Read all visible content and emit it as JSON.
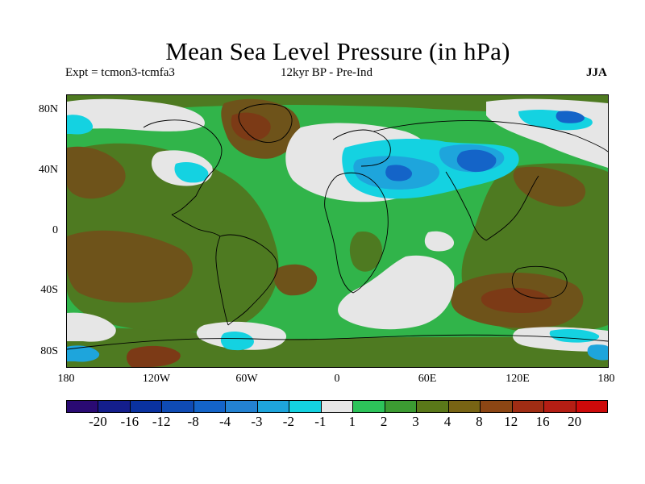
{
  "title": "Mean Sea Level Pressure (in hPa)",
  "experiment": "Expt = tcmon3-tcmfa3",
  "period": "12kyr BP - Pre-Ind",
  "season": "JJA",
  "lat_ticks": [
    "80N",
    "40N",
    "0",
    "40S",
    "80S"
  ],
  "lon_ticks": [
    "180",
    "120W",
    "60W",
    "0",
    "60E",
    "120E",
    "180"
  ],
  "colorbar": {
    "colors": [
      "#2a0a73",
      "#141e8c",
      "#0a32a0",
      "#0f4bb4",
      "#1464c8",
      "#2382d2",
      "#1ea5dc",
      "#14d2e1",
      "#e6e6e6",
      "#2dc35a",
      "#3c9b32",
      "#5a7819",
      "#786414",
      "#8c4614",
      "#a02d14",
      "#b41e14",
      "#cd0a0a"
    ],
    "labels": [
      "-20",
      "-16",
      "-12",
      "-8",
      "-4",
      "-3",
      "-2",
      "-1",
      "1",
      "2",
      "3",
      "4",
      "8",
      "12",
      "16",
      "20"
    ]
  },
  "field_colors": {
    "green": "#31b44a",
    "olive": "#4e7a21",
    "brown": "#6e531a",
    "darkbrown": "#7c3a16",
    "white": "#e6e6e6",
    "cyan": "#14d2e1",
    "lightblue": "#1ea5dc",
    "blue": "#1464c8"
  }
}
